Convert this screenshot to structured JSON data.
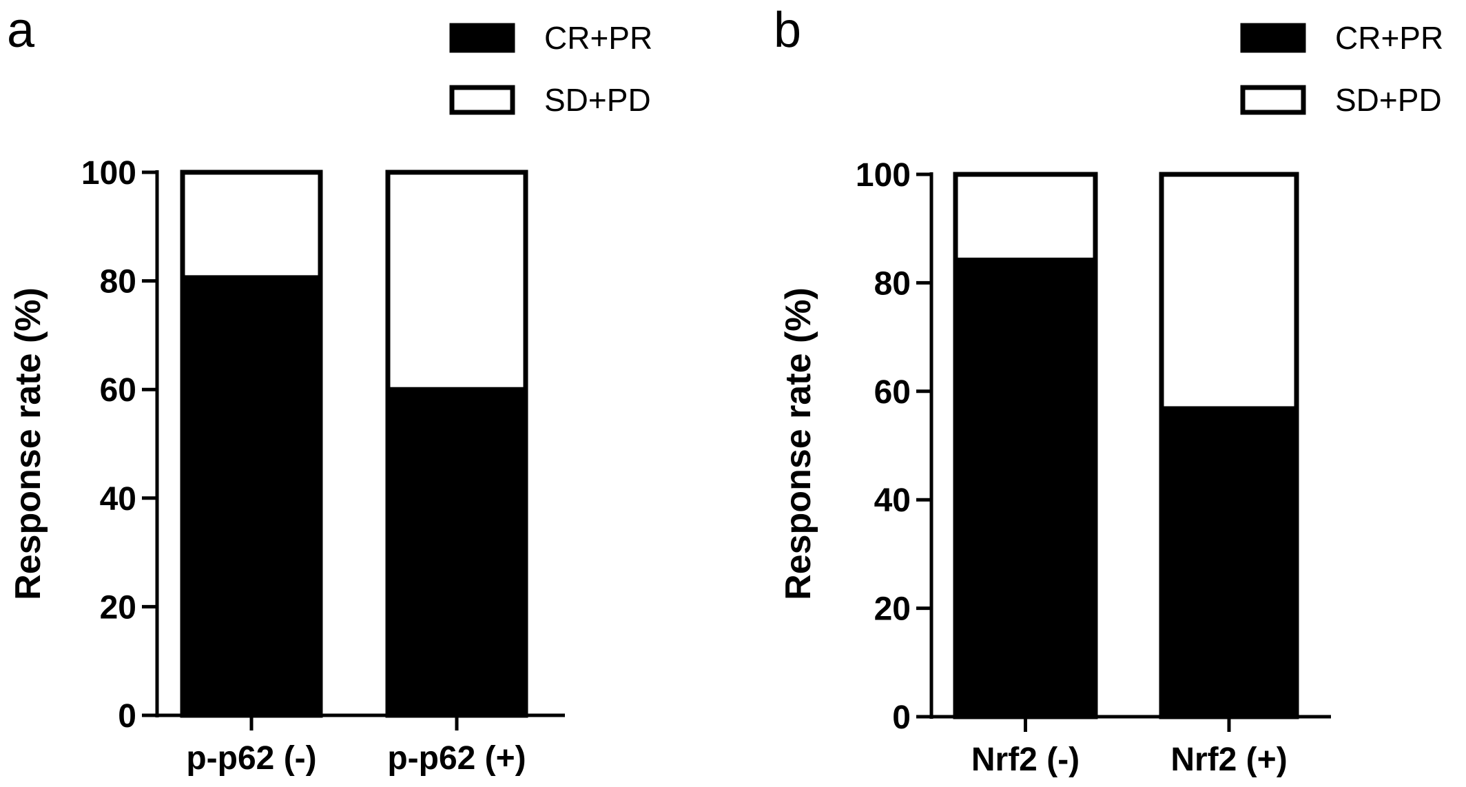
{
  "chart_data": [
    {
      "type": "bar",
      "stacked": true,
      "panel_label": "a",
      "categories": [
        "p-p62 (-)",
        "p-p62 (+)"
      ],
      "series": [
        {
          "name": "CR+PR",
          "values": [
            80.6,
            60.0
          ],
          "color": "#000000"
        },
        {
          "name": "SD+PD",
          "values": [
            19.4,
            40.0
          ],
          "color": "#ffffff"
        }
      ],
      "ylabel": "Response rate (%)",
      "xlabel": "",
      "ylim": [
        0,
        100
      ],
      "yticks": [
        "0",
        "20",
        "40",
        "60",
        "80",
        "100"
      ],
      "legend_position": "top-right",
      "grid": false
    },
    {
      "type": "bar",
      "stacked": true,
      "panel_label": "b",
      "categories": [
        "Nrf2 (-)",
        "Nrf2 (+)"
      ],
      "series": [
        {
          "name": "CR+PR",
          "values": [
            84.2,
            56.8
          ],
          "color": "#000000"
        },
        {
          "name": "SD+PD",
          "values": [
            15.8,
            43.2
          ],
          "color": "#ffffff"
        }
      ],
      "ylabel": "Response rate (%)",
      "xlabel": "",
      "ylim": [
        0,
        100
      ],
      "yticks": [
        "0",
        "20",
        "40",
        "60",
        "80",
        "100"
      ],
      "legend_position": "top-right",
      "grid": false
    }
  ]
}
